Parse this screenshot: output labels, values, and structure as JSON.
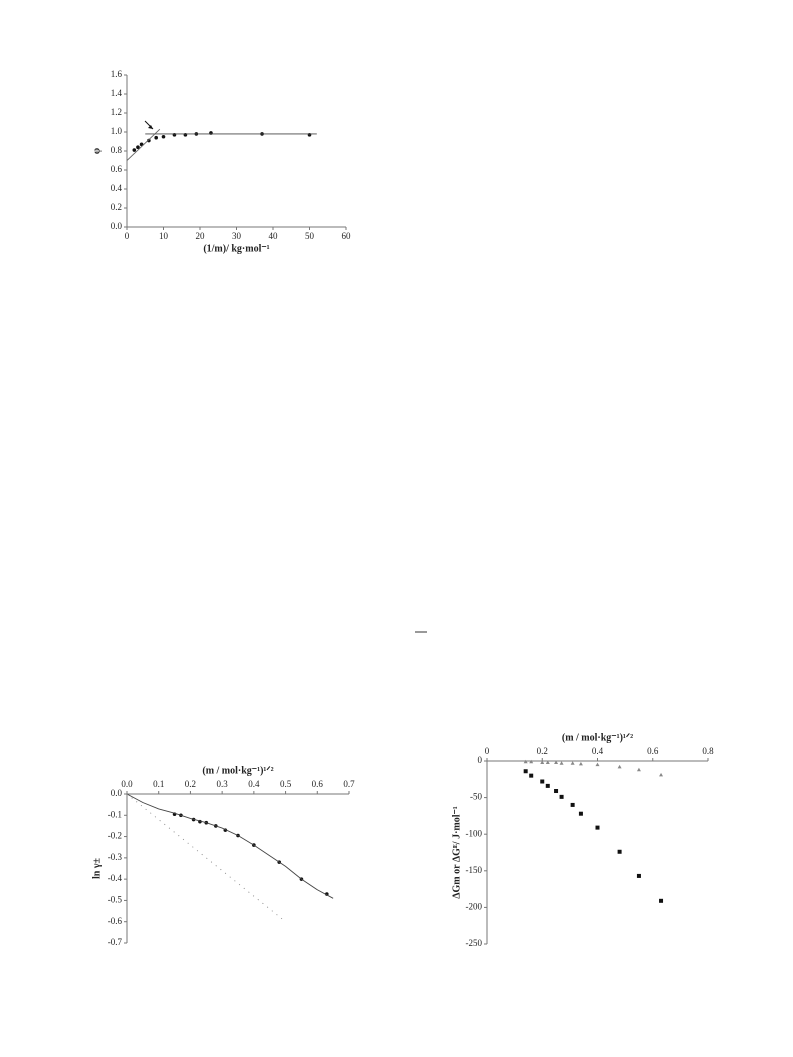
{
  "chart_data": [
    {
      "type": "scatter",
      "xlabel": "(1/m)/ kg·mol⁻¹",
      "ylabel": "φ",
      "xlim": [
        0,
        60
      ],
      "xticks": [
        0,
        10,
        20,
        30,
        40,
        50,
        60
      ],
      "ylim": [
        0,
        1.6
      ],
      "yticks": [
        {
          "value": 0,
          "label": "0.0"
        },
        {
          "value": 0.2,
          "label": "0.2"
        },
        {
          "value": 0.4,
          "label": "0.4"
        },
        {
          "value": 0.6,
          "label": "0.6"
        },
        {
          "value": 0.8,
          "label": "0.8"
        },
        {
          "value": 1,
          "label": "1.0"
        },
        {
          "value": 1.2,
          "label": "1.2"
        },
        {
          "value": 1.4,
          "label": "1.4"
        },
        {
          "value": 1.6,
          "label": "1.6"
        }
      ],
      "xaxis_position": "bottom",
      "series": [
        {
          "color": "#111",
          "marker": "circle",
          "line": "none",
          "x": [
            2,
            3,
            4,
            6,
            8,
            10,
            13,
            16,
            19,
            23,
            37,
            50
          ],
          "values": [
            0.81,
            0.84,
            0.87,
            0.91,
            0.94,
            0.95,
            0.97,
            0.97,
            0.98,
            0.99,
            0.98,
            0.97
          ]
        },
        {
          "color": "#444",
          "marker": "none",
          "line": "solid",
          "x": [
            5,
            52
          ],
          "values": [
            0.98,
            0.98
          ]
        },
        {
          "color": "#666",
          "marker": "none",
          "line": "solid",
          "x": [
            0,
            9
          ],
          "values": [
            0.7,
            1.03
          ]
        }
      ]
    },
    {
      "type": "scatter",
      "xlabel": "(m / mol·kg⁻¹)¹ᐟ²",
      "ylabel": "ln γ±",
      "xlim": [
        0,
        0.7
      ],
      "xticks": [
        {
          "value": 0,
          "label": "0.0"
        },
        0.1,
        0.2,
        0.3,
        0.4,
        0.5,
        0.6,
        0.7
      ],
      "ylim": [
        -0.7,
        0
      ],
      "yticks": [
        {
          "value": 0,
          "label": "0.0"
        },
        -0.1,
        -0.2,
        -0.3,
        -0.4,
        -0.5,
        -0.6,
        -0.7
      ],
      "xaxis_position": "top",
      "series": [
        {
          "color": "#111",
          "marker": "circle",
          "line": "none",
          "x": [
            0.15,
            0.17,
            0.21,
            0.23,
            0.25,
            0.28,
            0.31,
            0.35,
            0.4,
            0.48,
            0.55,
            0.63
          ],
          "values": [
            -0.095,
            -0.1,
            -0.12,
            -0.13,
            -0.135,
            -0.15,
            -0.17,
            -0.195,
            -0.24,
            -0.32,
            -0.4,
            -0.47
          ]
        },
        {
          "color": "#444",
          "marker": "none",
          "line": "solid",
          "x": [
            0,
            0.05,
            0.1,
            0.15,
            0.2,
            0.25,
            0.3,
            0.35,
            0.4,
            0.45,
            0.5,
            0.55,
            0.6,
            0.65
          ],
          "values": [
            0,
            -0.04,
            -0.07,
            -0.09,
            -0.115,
            -0.135,
            -0.16,
            -0.195,
            -0.24,
            -0.29,
            -0.34,
            -0.4,
            -0.45,
            -0.49
          ]
        },
        {
          "color": "#888",
          "marker": "none",
          "line": "dotted",
          "x": [
            0,
            0.5
          ],
          "values": [
            0,
            -0.6
          ]
        }
      ]
    },
    {
      "type": "scatter",
      "xlabel": "(m / mol·kg⁻¹)¹ᐟ²",
      "ylabel": "ΔGm or ΔGᴱ/ J·mol⁻¹",
      "xlim": [
        0,
        0.8
      ],
      "xticks": [
        0,
        0.2,
        0.4,
        0.6,
        0.8
      ],
      "ylim": [
        -250,
        0
      ],
      "yticks": [
        0,
        -50,
        -100,
        -150,
        -200,
        -250
      ],
      "xaxis_position": "top",
      "series": [
        {
          "color": "#111",
          "marker": "square",
          "line": "none",
          "x": [
            0.14,
            0.16,
            0.2,
            0.22,
            0.25,
            0.27,
            0.31,
            0.34,
            0.4,
            0.48,
            0.55,
            0.63
          ],
          "values": [
            -14,
            -20,
            -28,
            -34,
            -41,
            -49,
            -60,
            -72,
            -91,
            -124,
            -157,
            -191
          ]
        },
        {
          "color": "#888",
          "marker": "triangle",
          "line": "none",
          "x": [
            0.14,
            0.16,
            0.2,
            0.22,
            0.25,
            0.27,
            0.31,
            0.34,
            0.4,
            0.48,
            0.55,
            0.63
          ],
          "values": [
            -1,
            -1,
            -2,
            -2,
            -2,
            -3,
            -3,
            -4,
            -5,
            -8,
            -12,
            -19
          ]
        }
      ]
    }
  ]
}
